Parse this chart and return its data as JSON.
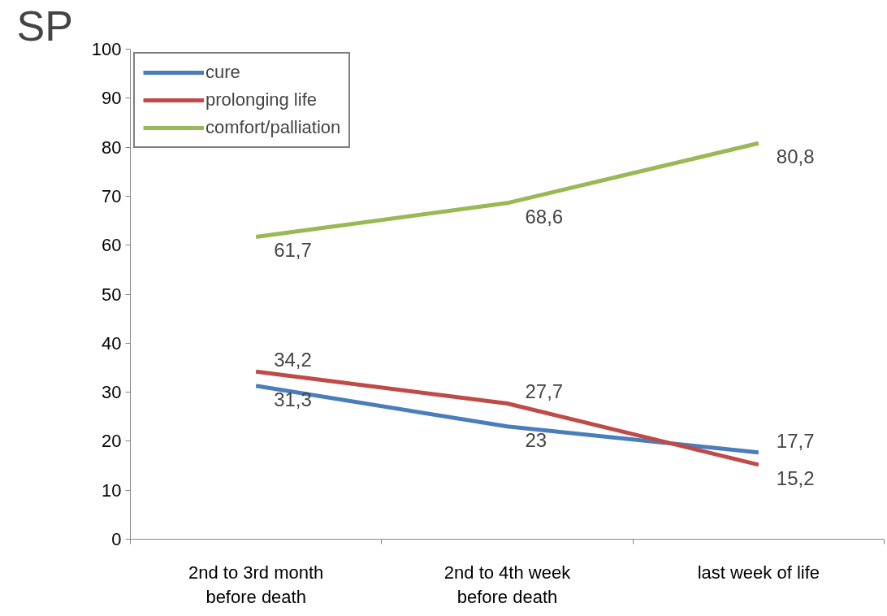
{
  "chart_data": {
    "type": "line",
    "title": "SP",
    "categories": [
      "2nd to 3rd month\nbefore death",
      "2nd to 4th week\nbefore death",
      "last week of life"
    ],
    "series": [
      {
        "name": "cure",
        "color": "#4a7ebb",
        "values": [
          31.3,
          23,
          17.7
        ],
        "value_labels": [
          "31,3",
          "23",
          "17,7"
        ]
      },
      {
        "name": "prolonging life",
        "color": "#be4b48",
        "values": [
          34.2,
          27.7,
          15.2
        ],
        "value_labels": [
          "34,2",
          "27,7",
          "15,2"
        ]
      },
      {
        "name": "comfort/palliation",
        "color": "#98b954",
        "values": [
          61.7,
          68.6,
          80.8
        ],
        "value_labels": [
          "61,7",
          "68,6",
          "80,8"
        ]
      }
    ],
    "ylim": [
      0,
      100
    ],
    "yticks": [
      0,
      10,
      20,
      30,
      40,
      50,
      60,
      70,
      80,
      90,
      100
    ],
    "grid": false,
    "legend": "top left",
    "marker": "none",
    "line_style": "solid"
  }
}
